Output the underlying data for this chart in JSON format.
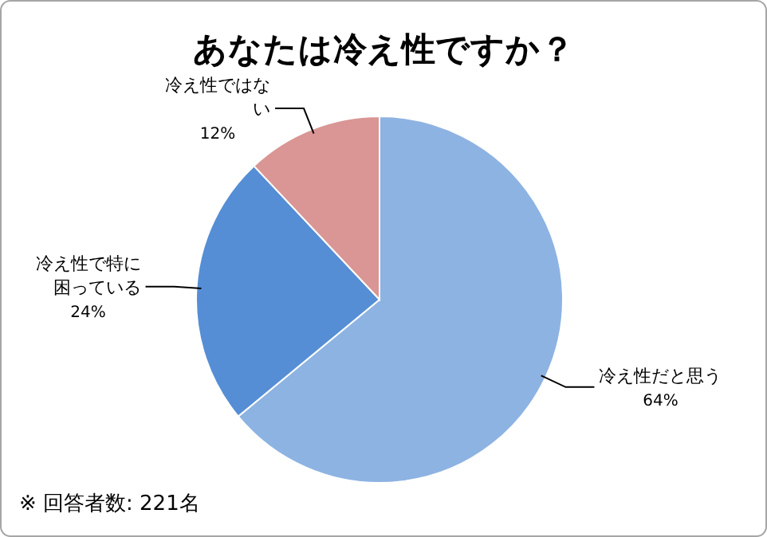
{
  "chart_data": {
    "type": "pie",
    "title": "あなたは冷え性ですか？",
    "categories": [
      "冷え性だと思う",
      "冷え性で特に困っている",
      "冷え性ではない"
    ],
    "values": [
      64,
      24,
      12
    ],
    "colors": [
      "#8db3e2",
      "#558ed5",
      "#d99694"
    ],
    "value_labels": [
      "64%",
      "24%",
      "12%"
    ],
    "annotations": [
      "※ 回答者数: 221名"
    ]
  }
}
